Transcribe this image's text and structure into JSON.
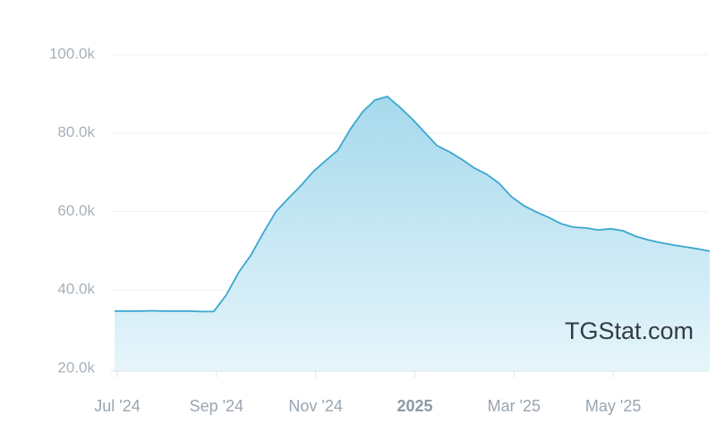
{
  "chart_data": {
    "type": "area",
    "watermark": "TGStat.com",
    "categories": [
      "Jul '24",
      null,
      null,
      null,
      null,
      null,
      null,
      null,
      "Sep '24",
      null,
      null,
      null,
      null,
      null,
      null,
      null,
      "Nov '24",
      null,
      null,
      null,
      null,
      null,
      null,
      null,
      "2025",
      null,
      null,
      null,
      null,
      null,
      null,
      null,
      "Mar '25",
      null,
      null,
      null,
      null,
      null,
      null,
      null,
      "May '25",
      null,
      null,
      null,
      null,
      null,
      null,
      null,
      null
    ],
    "values": [
      34600,
      34600,
      34600,
      34700,
      34600,
      34600,
      34600,
      34500,
      34500,
      38700,
      44400,
      48900,
      54600,
      59900,
      63300,
      66500,
      70100,
      72900,
      75600,
      80900,
      85400,
      88400,
      89300,
      86600,
      83600,
      80200,
      76800,
      75200,
      73300,
      71100,
      69500,
      67200,
      63800,
      61500,
      59900,
      58500,
      56900,
      56000,
      55800,
      55300,
      55600,
      55100,
      53700,
      52800,
      52100,
      51500,
      51000,
      50500,
      49900
    ],
    "color": "#3ba7cf",
    "ylim": [
      20000,
      100000
    ],
    "yticks": [
      {
        "value": 20000,
        "label": "20.0k"
      },
      {
        "value": 40000,
        "label": "40.0k"
      },
      {
        "value": 60000,
        "label": "60.0k"
      },
      {
        "value": 80000,
        "label": "80.0k"
      },
      {
        "value": 100000,
        "label": "100.0k"
      }
    ],
    "grid": true
  }
}
